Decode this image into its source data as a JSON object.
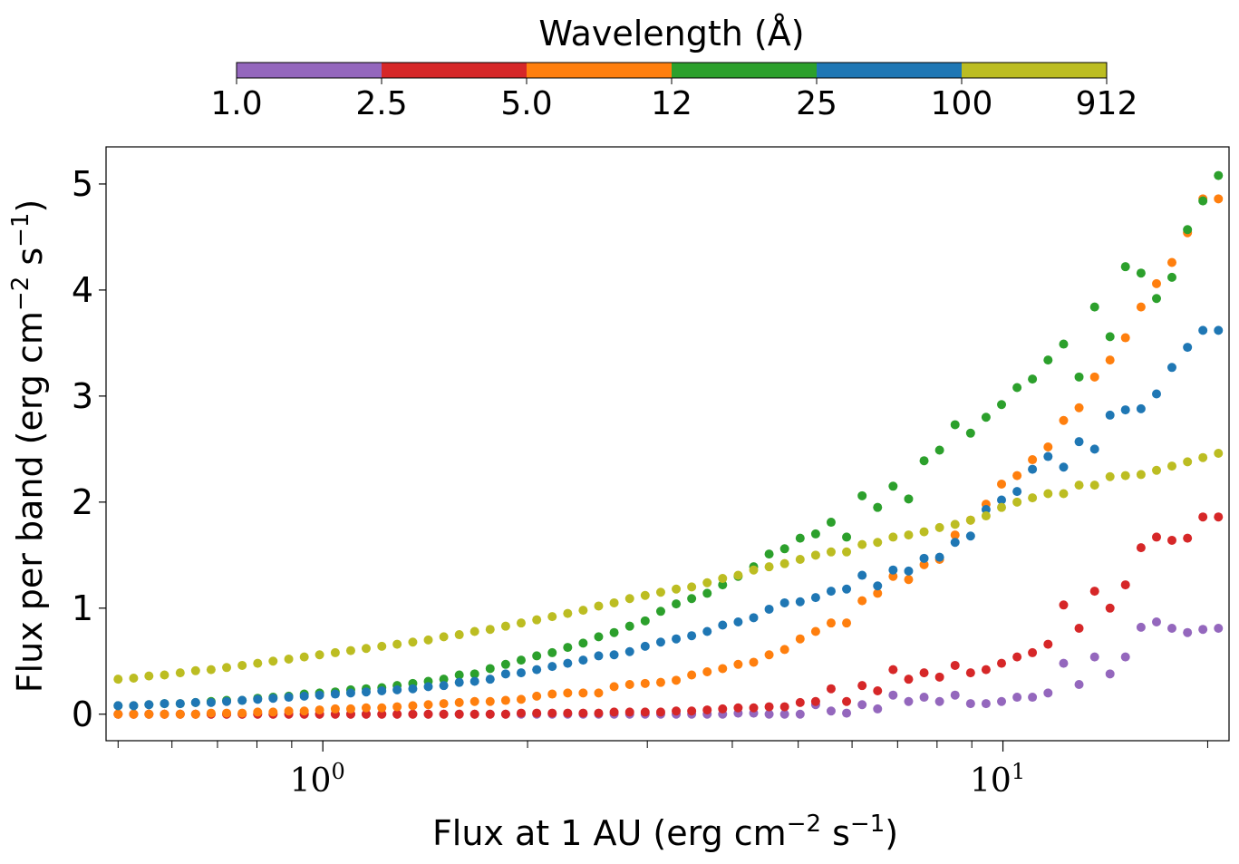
{
  "colorbar": {
    "title": "Wavelength (Å)",
    "tick_labels": [
      "1.0",
      "2.5",
      "5.0",
      "12",
      "25",
      "100",
      "912"
    ],
    "colors": [
      "#9467bd",
      "#d62728",
      "#ff7f0e",
      "#2ca02c",
      "#1f77b4",
      "#bcbd22"
    ]
  },
  "chart_data": {
    "type": "scatter",
    "title": "",
    "xlabel": "Flux at 1 AU (erg cm^-2 s^-1)",
    "ylabel": "Flux per band (erg cm^-2 s^-1)",
    "xscale": "log",
    "xlim": [
      0.48,
      21.5
    ],
    "ylim": [
      -0.25,
      5.35
    ],
    "yticks": [
      0,
      1,
      2,
      3,
      4,
      5
    ],
    "ytick_labels": [
      "0",
      "1",
      "2",
      "3",
      "4",
      "5"
    ],
    "xticks_major": [
      1,
      10
    ],
    "xtick_labels": [
      "10^0",
      "10^1"
    ],
    "xticks_minor": [
      0.5,
      0.6,
      0.7,
      0.8,
      0.9,
      2,
      3,
      4,
      5,
      6,
      7,
      8,
      9,
      20
    ],
    "grid": false,
    "legend": "none",
    "x": [
      0.5,
      0.527,
      0.555,
      0.585,
      0.617,
      0.65,
      0.685,
      0.722,
      0.761,
      0.802,
      0.845,
      0.891,
      0.939,
      0.989,
      1.043,
      1.099,
      1.158,
      1.221,
      1.286,
      1.356,
      1.429,
      1.506,
      1.587,
      1.672,
      1.762,
      1.857,
      1.957,
      2.063,
      2.174,
      2.291,
      2.414,
      2.544,
      2.681,
      2.826,
      2.978,
      3.139,
      3.308,
      3.486,
      3.674,
      3.871,
      4.08,
      4.3,
      4.531,
      4.775,
      5.033,
      5.304,
      5.589,
      5.89,
      6.208,
      6.542,
      6.894,
      7.266,
      7.657,
      8.069,
      8.504,
      8.962,
      9.444,
      9.953,
      10.49,
      11.05,
      11.65,
      12.28,
      12.94,
      13.64,
      14.37,
      15.14,
      15.96,
      16.82,
      17.72,
      18.68,
      19.68,
      20.74
    ],
    "series": [
      {
        "name": "1.0–2.5",
        "color": "#9467bd",
        "values": [
          0.0,
          0.0,
          0.0,
          0.0,
          0.0,
          0.0,
          0.0,
          0.0,
          0.0,
          0.0,
          0.0,
          0.0,
          0.0,
          0.0,
          0.0,
          0.0,
          0.0,
          0.0,
          0.0,
          0.0,
          0.0,
          0.0,
          0.0,
          0.0,
          0.0,
          0.0,
          0.0,
          0.0,
          0.0,
          0.0,
          0.0,
          0.0,
          0.0,
          0.0,
          0.0,
          0.0,
          0.0,
          0.0,
          0.0,
          0.0,
          0.01,
          0.01,
          0.0,
          0.0,
          0.0,
          0.09,
          0.03,
          0.01,
          0.09,
          0.05,
          0.18,
          0.12,
          0.16,
          0.12,
          0.18,
          0.1,
          0.1,
          0.12,
          0.16,
          0.16,
          0.2,
          0.48,
          0.28,
          0.54,
          0.38,
          0.54,
          0.82,
          0.87,
          0.81,
          0.77,
          0.8,
          0.81
        ]
      },
      {
        "name": "2.5–5.0",
        "color": "#d62728",
        "values": [
          0.0,
          0.0,
          0.0,
          0.0,
          0.0,
          0.0,
          0.0,
          0.0,
          0.0,
          0.0,
          0.0,
          0.0,
          0.0,
          0.0,
          0.0,
          0.0,
          0.0,
          0.0,
          0.0,
          0.0,
          0.0,
          0.0,
          0.0,
          0.0,
          0.0,
          0.0,
          0.01,
          0.01,
          0.01,
          0.01,
          0.01,
          0.01,
          0.02,
          0.02,
          0.02,
          0.02,
          0.03,
          0.03,
          0.04,
          0.05,
          0.06,
          0.06,
          0.07,
          0.07,
          0.11,
          0.12,
          0.24,
          0.12,
          0.27,
          0.22,
          0.42,
          0.33,
          0.39,
          0.35,
          0.46,
          0.39,
          0.42,
          0.48,
          0.54,
          0.58,
          0.66,
          1.03,
          0.81,
          1.16,
          1.0,
          1.22,
          1.57,
          1.67,
          1.64,
          1.66,
          1.86,
          1.86
        ]
      },
      {
        "name": "5.0–12",
        "color": "#ff7f0e",
        "values": [
          0.0,
          0.0,
          0.0,
          0.0,
          0.0,
          0.0,
          0.01,
          0.01,
          0.01,
          0.02,
          0.02,
          0.03,
          0.03,
          0.04,
          0.05,
          0.05,
          0.06,
          0.06,
          0.07,
          0.08,
          0.09,
          0.1,
          0.11,
          0.12,
          0.12,
          0.13,
          0.14,
          0.17,
          0.19,
          0.2,
          0.2,
          0.2,
          0.26,
          0.28,
          0.29,
          0.3,
          0.32,
          0.37,
          0.4,
          0.43,
          0.47,
          0.49,
          0.56,
          0.61,
          0.71,
          0.78,
          0.86,
          0.86,
          1.07,
          1.14,
          1.3,
          1.27,
          1.41,
          1.46,
          1.69,
          1.83,
          1.98,
          2.17,
          2.25,
          2.4,
          2.52,
          2.77,
          2.89,
          3.18,
          3.34,
          3.55,
          3.84,
          4.06,
          4.26,
          4.54,
          4.86,
          4.86
        ]
      },
      {
        "name": "12–25",
        "color": "#2ca02c",
        "values": [
          0.08,
          0.08,
          0.09,
          0.1,
          0.1,
          0.11,
          0.12,
          0.13,
          0.13,
          0.15,
          0.16,
          0.17,
          0.19,
          0.2,
          0.21,
          0.23,
          0.24,
          0.25,
          0.27,
          0.29,
          0.31,
          0.33,
          0.37,
          0.38,
          0.43,
          0.47,
          0.51,
          0.55,
          0.58,
          0.63,
          0.67,
          0.73,
          0.77,
          0.83,
          0.88,
          0.97,
          1.04,
          1.09,
          1.14,
          1.22,
          1.3,
          1.39,
          1.51,
          1.56,
          1.66,
          1.7,
          1.81,
          1.67,
          2.06,
          1.95,
          2.15,
          2.03,
          2.39,
          2.49,
          2.73,
          2.65,
          2.8,
          2.92,
          3.08,
          3.16,
          3.34,
          3.49,
          3.18,
          3.84,
          3.56,
          4.22,
          4.16,
          3.92,
          4.12,
          4.57,
          4.84,
          5.08
        ]
      },
      {
        "name": "25–100",
        "color": "#1f77b4",
        "values": [
          0.08,
          0.08,
          0.09,
          0.1,
          0.1,
          0.11,
          0.11,
          0.12,
          0.13,
          0.14,
          0.15,
          0.16,
          0.17,
          0.18,
          0.19,
          0.2,
          0.21,
          0.22,
          0.23,
          0.24,
          0.26,
          0.27,
          0.3,
          0.31,
          0.33,
          0.38,
          0.39,
          0.42,
          0.45,
          0.48,
          0.51,
          0.55,
          0.56,
          0.59,
          0.64,
          0.68,
          0.71,
          0.74,
          0.78,
          0.84,
          0.87,
          0.91,
          0.99,
          1.05,
          1.06,
          1.1,
          1.16,
          1.18,
          1.31,
          1.21,
          1.36,
          1.35,
          1.47,
          1.48,
          1.62,
          1.68,
          1.93,
          2.02,
          2.1,
          2.31,
          2.43,
          2.33,
          2.57,
          2.5,
          2.82,
          2.87,
          2.88,
          3.02,
          3.27,
          3.46,
          3.62,
          3.62
        ]
      },
      {
        "name": "100–912",
        "color": "#bcbd22",
        "values": [
          0.33,
          0.34,
          0.36,
          0.37,
          0.39,
          0.41,
          0.42,
          0.44,
          0.46,
          0.48,
          0.5,
          0.52,
          0.54,
          0.56,
          0.58,
          0.6,
          0.62,
          0.64,
          0.66,
          0.68,
          0.7,
          0.73,
          0.75,
          0.78,
          0.8,
          0.83,
          0.86,
          0.89,
          0.92,
          0.95,
          0.98,
          1.02,
          1.05,
          1.09,
          1.12,
          1.15,
          1.18,
          1.2,
          1.24,
          1.28,
          1.31,
          1.36,
          1.39,
          1.42,
          1.46,
          1.5,
          1.53,
          1.53,
          1.6,
          1.62,
          1.67,
          1.69,
          1.72,
          1.76,
          1.79,
          1.83,
          1.87,
          1.95,
          2.0,
          2.04,
          2.08,
          2.08,
          2.16,
          2.16,
          2.24,
          2.25,
          2.26,
          2.3,
          2.34,
          2.38,
          2.42,
          2.46
        ]
      }
    ]
  }
}
